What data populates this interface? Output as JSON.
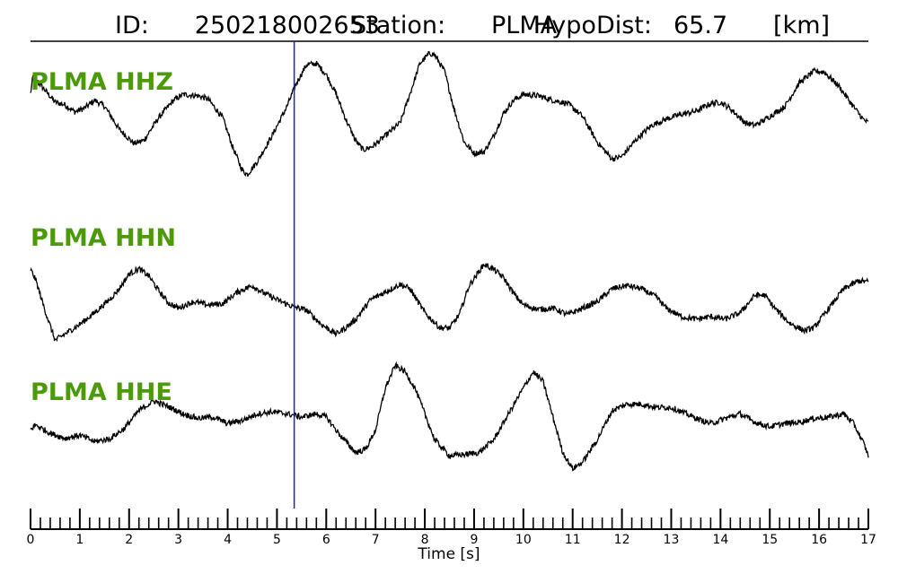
{
  "title": {
    "id_label": "ID:",
    "id_value": "250218002653",
    "station_label": "Station:",
    "station_value": "PLMA",
    "dist_label": "HypoDist:",
    "dist_value": "65.7",
    "dist_unit": "[km]"
  },
  "colors": {
    "channel_label": "#4c9a0a",
    "trace": "#000000",
    "pick_line": "#1f1fd0"
  },
  "chart_data": {
    "type": "line",
    "xlabel": "Time [s]",
    "xlim": [
      0,
      17
    ],
    "x_major_ticks": [
      0,
      1,
      2,
      3,
      4,
      5,
      6,
      7,
      8,
      9,
      10,
      11,
      12,
      13,
      14,
      15,
      16,
      17
    ],
    "x_minor_step": 0.2,
    "pick_time": 5.35,
    "series": [
      {
        "name": "PLMA HHZ",
        "units": "normalized amplitude",
        "points": [
          [
            0,
            0.45
          ],
          [
            0.05,
            0.72
          ],
          [
            0.1,
            0.68
          ],
          [
            0.3,
            0.5
          ],
          [
            0.5,
            0.32
          ],
          [
            0.7,
            0.28
          ],
          [
            0.9,
            0.17
          ],
          [
            1.1,
            0.23
          ],
          [
            1.3,
            0.35
          ],
          [
            1.5,
            0.26
          ],
          [
            1.8,
            -0.1
          ],
          [
            2.1,
            -0.32
          ],
          [
            2.3,
            -0.27
          ],
          [
            2.6,
            0.08
          ],
          [
            2.9,
            0.35
          ],
          [
            3.1,
            0.44
          ],
          [
            3.4,
            0.42
          ],
          [
            3.6,
            0.37
          ],
          [
            3.9,
            0.08
          ],
          [
            4.1,
            -0.37
          ],
          [
            4.3,
            -0.74
          ],
          [
            4.4,
            -0.8
          ],
          [
            4.6,
            -0.6
          ],
          [
            4.9,
            -0.2
          ],
          [
            5.2,
            0.25
          ],
          [
            5.4,
            0.62
          ],
          [
            5.6,
            0.9
          ],
          [
            5.8,
            0.92
          ],
          [
            6.0,
            0.75
          ],
          [
            6.2,
            0.45
          ],
          [
            6.4,
            0.05
          ],
          [
            6.6,
            -0.28
          ],
          [
            6.75,
            -0.42
          ],
          [
            6.95,
            -0.36
          ],
          [
            7.2,
            -0.2
          ],
          [
            7.5,
            0.0
          ],
          [
            7.7,
            0.45
          ],
          [
            7.9,
            0.92
          ],
          [
            8.1,
            1.08
          ],
          [
            8.2,
            1.05
          ],
          [
            8.4,
            0.8
          ],
          [
            8.6,
            0.2
          ],
          [
            8.8,
            -0.3
          ],
          [
            9.0,
            -0.47
          ],
          [
            9.2,
            -0.45
          ],
          [
            9.4,
            -0.2
          ],
          [
            9.6,
            0.15
          ],
          [
            9.8,
            0.35
          ],
          [
            10.0,
            0.44
          ],
          [
            10.3,
            0.42
          ],
          [
            10.6,
            0.35
          ],
          [
            10.9,
            0.3
          ],
          [
            11.2,
            0.1
          ],
          [
            11.5,
            -0.3
          ],
          [
            11.8,
            -0.56
          ],
          [
            12.0,
            -0.52
          ],
          [
            12.3,
            -0.25
          ],
          [
            12.6,
            -0.04
          ],
          [
            12.9,
            0.06
          ],
          [
            13.2,
            0.13
          ],
          [
            13.5,
            0.18
          ],
          [
            13.8,
            0.3
          ],
          [
            14.0,
            0.32
          ],
          [
            14.2,
            0.22
          ],
          [
            14.5,
            0.0
          ],
          [
            14.7,
            -0.04
          ],
          [
            14.9,
            0.05
          ],
          [
            15.3,
            0.25
          ],
          [
            15.6,
            0.62
          ],
          [
            15.9,
            0.8
          ],
          [
            16.1,
            0.79
          ],
          [
            16.4,
            0.57
          ],
          [
            16.7,
            0.25
          ],
          [
            16.9,
            0.05
          ],
          [
            17.0,
            0.0
          ]
        ]
      },
      {
        "name": "PLMA HHN",
        "units": "normalized amplitude",
        "points": [
          [
            0,
            0.55
          ],
          [
            0.1,
            0.4
          ],
          [
            0.3,
            -0.1
          ],
          [
            0.5,
            -0.55
          ],
          [
            0.7,
            -0.45
          ],
          [
            1.0,
            -0.3
          ],
          [
            1.3,
            -0.12
          ],
          [
            1.6,
            0.08
          ],
          [
            1.8,
            0.25
          ],
          [
            2.0,
            0.48
          ],
          [
            2.2,
            0.56
          ],
          [
            2.4,
            0.45
          ],
          [
            2.6,
            0.22
          ],
          [
            2.8,
            0.03
          ],
          [
            3.0,
            -0.05
          ],
          [
            3.3,
            0.05
          ],
          [
            3.6,
            0.0
          ],
          [
            3.9,
            0.02
          ],
          [
            4.2,
            0.2
          ],
          [
            4.5,
            0.3
          ],
          [
            4.7,
            0.2
          ],
          [
            5.0,
            0.08
          ],
          [
            5.3,
            -0.02
          ],
          [
            5.6,
            -0.08
          ],
          [
            5.9,
            -0.3
          ],
          [
            6.2,
            -0.45
          ],
          [
            6.4,
            -0.35
          ],
          [
            6.6,
            -0.22
          ],
          [
            6.9,
            0.08
          ],
          [
            7.2,
            0.2
          ],
          [
            7.5,
            0.32
          ],
          [
            7.7,
            0.25
          ],
          [
            8.0,
            -0.12
          ],
          [
            8.3,
            -0.35
          ],
          [
            8.5,
            -0.36
          ],
          [
            8.7,
            -0.15
          ],
          [
            8.9,
            0.3
          ],
          [
            9.2,
            0.63
          ],
          [
            9.4,
            0.55
          ],
          [
            9.6,
            0.42
          ],
          [
            9.8,
            0.18
          ],
          [
            10.0,
            0.0
          ],
          [
            10.3,
            -0.07
          ],
          [
            10.6,
            -0.05
          ],
          [
            10.9,
            -0.15
          ],
          [
            11.2,
            -0.05
          ],
          [
            11.5,
            0.05
          ],
          [
            11.8,
            0.25
          ],
          [
            12.1,
            0.3
          ],
          [
            12.4,
            0.25
          ],
          [
            12.7,
            0.12
          ],
          [
            12.9,
            -0.05
          ],
          [
            13.2,
            -0.18
          ],
          [
            13.5,
            -0.22
          ],
          [
            13.8,
            -0.18
          ],
          [
            14.1,
            -0.22
          ],
          [
            14.4,
            -0.12
          ],
          [
            14.7,
            0.15
          ],
          [
            14.9,
            0.15
          ],
          [
            15.1,
            -0.05
          ],
          [
            15.4,
            -0.28
          ],
          [
            15.7,
            -0.4
          ],
          [
            15.9,
            -0.35
          ],
          [
            16.2,
            -0.05
          ],
          [
            16.5,
            0.25
          ],
          [
            16.8,
            0.37
          ],
          [
            17.0,
            0.36
          ]
        ]
      },
      {
        "name": "PLMA HHE",
        "units": "normalized amplitude",
        "points": [
          [
            0,
            -0.2
          ],
          [
            0.1,
            -0.12
          ],
          [
            0.4,
            -0.25
          ],
          [
            0.7,
            -0.33
          ],
          [
            1.0,
            -0.28
          ],
          [
            1.3,
            -0.38
          ],
          [
            1.6,
            -0.34
          ],
          [
            1.9,
            -0.18
          ],
          [
            2.2,
            0.1
          ],
          [
            2.5,
            0.25
          ],
          [
            2.8,
            0.16
          ],
          [
            3.1,
            0.05
          ],
          [
            3.4,
            -0.02
          ],
          [
            3.7,
            0.0
          ],
          [
            4.0,
            -0.1
          ],
          [
            4.3,
            -0.05
          ],
          [
            4.6,
            0.05
          ],
          [
            4.9,
            0.08
          ],
          [
            5.2,
            0.05
          ],
          [
            5.5,
            0.0
          ],
          [
            5.8,
            0.05
          ],
          [
            6.0,
            0.0
          ],
          [
            6.3,
            -0.3
          ],
          [
            6.6,
            -0.55
          ],
          [
            6.8,
            -0.5
          ],
          [
            7.0,
            -0.2
          ],
          [
            7.2,
            0.45
          ],
          [
            7.4,
            0.8
          ],
          [
            7.6,
            0.7
          ],
          [
            7.8,
            0.45
          ],
          [
            8.0,
            0.05
          ],
          [
            8.2,
            -0.35
          ],
          [
            8.5,
            -0.6
          ],
          [
            8.8,
            -0.58
          ],
          [
            9.1,
            -0.55
          ],
          [
            9.4,
            -0.35
          ],
          [
            9.7,
            0.05
          ],
          [
            10.0,
            0.45
          ],
          [
            10.2,
            0.7
          ],
          [
            10.4,
            0.55
          ],
          [
            10.6,
            0.0
          ],
          [
            10.8,
            -0.55
          ],
          [
            11.0,
            -0.8
          ],
          [
            11.2,
            -0.7
          ],
          [
            11.5,
            -0.35
          ],
          [
            11.8,
            0.1
          ],
          [
            12.1,
            0.2
          ],
          [
            12.4,
            0.2
          ],
          [
            12.7,
            0.15
          ],
          [
            13.0,
            0.15
          ],
          [
            13.3,
            0.05
          ],
          [
            13.6,
            -0.05
          ],
          [
            13.8,
            -0.1
          ],
          [
            14.1,
            -0.02
          ],
          [
            14.4,
            0.05
          ],
          [
            14.7,
            -0.08
          ],
          [
            15.0,
            -0.15
          ],
          [
            15.3,
            -0.1
          ],
          [
            15.6,
            -0.08
          ],
          [
            15.9,
            -0.02
          ],
          [
            16.2,
            0.0
          ],
          [
            16.5,
            0.05
          ],
          [
            16.7,
            -0.1
          ],
          [
            16.9,
            -0.4
          ],
          [
            17.0,
            -0.6
          ]
        ]
      }
    ]
  }
}
